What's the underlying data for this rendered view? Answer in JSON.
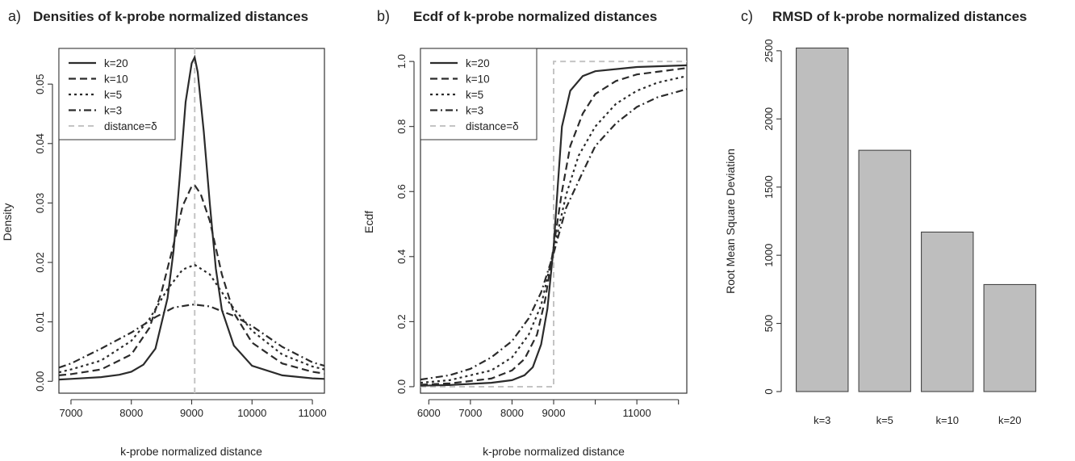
{
  "panels": [
    {
      "label": "a)",
      "title": "Densities of k-probe normalized distances",
      "xlabel": "k-probe normalized distance",
      "ylabel": "Density"
    },
    {
      "label": "b)",
      "title": "Ecdf of k-probe normalized distances",
      "xlabel": "k-probe normalized distance",
      "ylabel": "Ecdf"
    },
    {
      "label": "c)",
      "title": "RMSD of k-probe normalized distances",
      "xlabel": "",
      "ylabel": "Root Mean Square Deviation"
    }
  ],
  "legend": [
    "k=20",
    "k=10",
    "k=5",
    "k=3",
    "distance=δ"
  ],
  "chart_data": [
    {
      "type": "line",
      "title": "Densities of k-probe normalized distances",
      "xlabel": "k-probe normalized distance",
      "ylabel": "Density",
      "xlim": [
        6800,
        11200
      ],
      "ylim": [
        -0.002,
        0.056
      ],
      "xticks": [
        7000,
        8000,
        9000,
        10000,
        11000
      ],
      "xtick_labels": [
        "7000",
        "8000",
        "9000",
        "10000",
        "11000"
      ],
      "yticks": [
        0,
        0.01,
        0.02,
        0.03,
        0.04,
        0.05
      ],
      "ytick_labels": [
        "0.00",
        "0.01",
        "0.02",
        "0.03",
        "0.04",
        "0.05"
      ],
      "legend_position": "top-left",
      "reference_x": 9050,
      "series": [
        {
          "name": "k=20",
          "x": [
            6800,
            7000,
            7500,
            7800,
            8000,
            8200,
            8400,
            8600,
            8700,
            8800,
            8900,
            9000,
            9050,
            9100,
            9200,
            9300,
            9400,
            9500,
            9700,
            10000,
            10500,
            11000,
            11200
          ],
          "y": [
            0.0003,
            0.0004,
            0.0007,
            0.0011,
            0.0016,
            0.0028,
            0.0055,
            0.014,
            0.022,
            0.034,
            0.047,
            0.0535,
            0.0545,
            0.052,
            0.042,
            0.03,
            0.019,
            0.012,
            0.006,
            0.0026,
            0.001,
            0.0005,
            0.0004
          ]
        },
        {
          "name": "k=10",
          "x": [
            6800,
            7000,
            7500,
            8000,
            8300,
            8500,
            8700,
            8850,
            9000,
            9050,
            9150,
            9300,
            9500,
            9700,
            10000,
            10500,
            11000,
            11200
          ],
          "y": [
            0.001,
            0.0012,
            0.002,
            0.0045,
            0.009,
            0.015,
            0.023,
            0.0295,
            0.0328,
            0.033,
            0.0315,
            0.027,
            0.018,
            0.0115,
            0.0065,
            0.003,
            0.0016,
            0.0013
          ]
        },
        {
          "name": "k=5",
          "x": [
            6800,
            7000,
            7500,
            8000,
            8300,
            8600,
            8850,
            9050,
            9300,
            9600,
            10000,
            10500,
            11000,
            11200
          ],
          "y": [
            0.0015,
            0.002,
            0.0035,
            0.0068,
            0.0105,
            0.0155,
            0.0188,
            0.0196,
            0.018,
            0.0135,
            0.0085,
            0.0045,
            0.0025,
            0.002
          ]
        },
        {
          "name": "k=3",
          "x": [
            6800,
            7000,
            7500,
            8000,
            8400,
            8700,
            9000,
            9050,
            9300,
            9700,
            10000,
            10500,
            11000,
            11200
          ],
          "y": [
            0.0023,
            0.003,
            0.0055,
            0.0082,
            0.0108,
            0.0124,
            0.0129,
            0.0129,
            0.0126,
            0.011,
            0.0093,
            0.0058,
            0.0032,
            0.0026
          ]
        }
      ]
    },
    {
      "type": "line",
      "title": "Ecdf of k-probe normalized distances",
      "xlabel": "k-probe normalized distance",
      "ylabel": "Ecdf",
      "xlim": [
        5800,
        12200
      ],
      "ylim": [
        -0.02,
        1.04
      ],
      "xticks": [
        6000,
        7000,
        8000,
        9000,
        10000,
        11000,
        12000
      ],
      "xtick_labels": [
        "6000",
        "7000",
        "8000",
        "9000",
        "",
        "11000",
        ""
      ],
      "yticks": [
        0,
        0.2,
        0.4,
        0.6,
        0.8,
        1.0
      ],
      "ytick_labels": [
        "0.0",
        "0.2",
        "0.4",
        "0.6",
        "0.8",
        "1.0"
      ],
      "legend_position": "top-left",
      "reference_step_x": 9000,
      "series": [
        {
          "name": "k=20",
          "x": [
            5800,
            6500,
            7500,
            8000,
            8300,
            8500,
            8700,
            8850,
            9000,
            9100,
            9200,
            9400,
            9700,
            10000,
            11000,
            12200
          ],
          "y": [
            0.003,
            0.005,
            0.012,
            0.02,
            0.035,
            0.06,
            0.13,
            0.24,
            0.43,
            0.62,
            0.8,
            0.91,
            0.955,
            0.97,
            0.983,
            0.988
          ]
        },
        {
          "name": "k=10",
          "x": [
            5800,
            6500,
            7500,
            8000,
            8300,
            8600,
            8800,
            9000,
            9200,
            9400,
            9700,
            10000,
            10500,
            11000,
            12200
          ],
          "y": [
            0.006,
            0.01,
            0.025,
            0.05,
            0.085,
            0.16,
            0.27,
            0.43,
            0.6,
            0.74,
            0.84,
            0.9,
            0.94,
            0.96,
            0.98
          ]
        },
        {
          "name": "k=5",
          "x": [
            5800,
            6500,
            7500,
            8000,
            8400,
            8700,
            9000,
            9300,
            9600,
            10000,
            10500,
            11000,
            11500,
            12200
          ],
          "y": [
            0.012,
            0.02,
            0.05,
            0.09,
            0.16,
            0.25,
            0.42,
            0.59,
            0.71,
            0.8,
            0.87,
            0.91,
            0.935,
            0.955
          ]
        },
        {
          "name": "k=3",
          "x": [
            5800,
            6500,
            7000,
            7500,
            8000,
            8400,
            8700,
            9000,
            9300,
            9700,
            10000,
            10500,
            11000,
            11500,
            12200
          ],
          "y": [
            0.022,
            0.035,
            0.055,
            0.09,
            0.14,
            0.21,
            0.29,
            0.41,
            0.55,
            0.66,
            0.74,
            0.81,
            0.86,
            0.89,
            0.915
          ]
        }
      ]
    },
    {
      "type": "bar",
      "title": "RMSD of k-probe normalized distances",
      "xlabel": "",
      "ylabel": "Root Mean Square Deviation",
      "categories": [
        "k=3",
        "k=5",
        "k=10",
        "k=20"
      ],
      "values": [
        2520,
        1770,
        1170,
        785
      ],
      "ylim": [
        0,
        2600
      ],
      "yticks": [
        0,
        500,
        1000,
        1500,
        2000,
        2500
      ],
      "ytick_labels": [
        "0",
        "500",
        "1000",
        "1500",
        "2000",
        "2500"
      ]
    }
  ]
}
